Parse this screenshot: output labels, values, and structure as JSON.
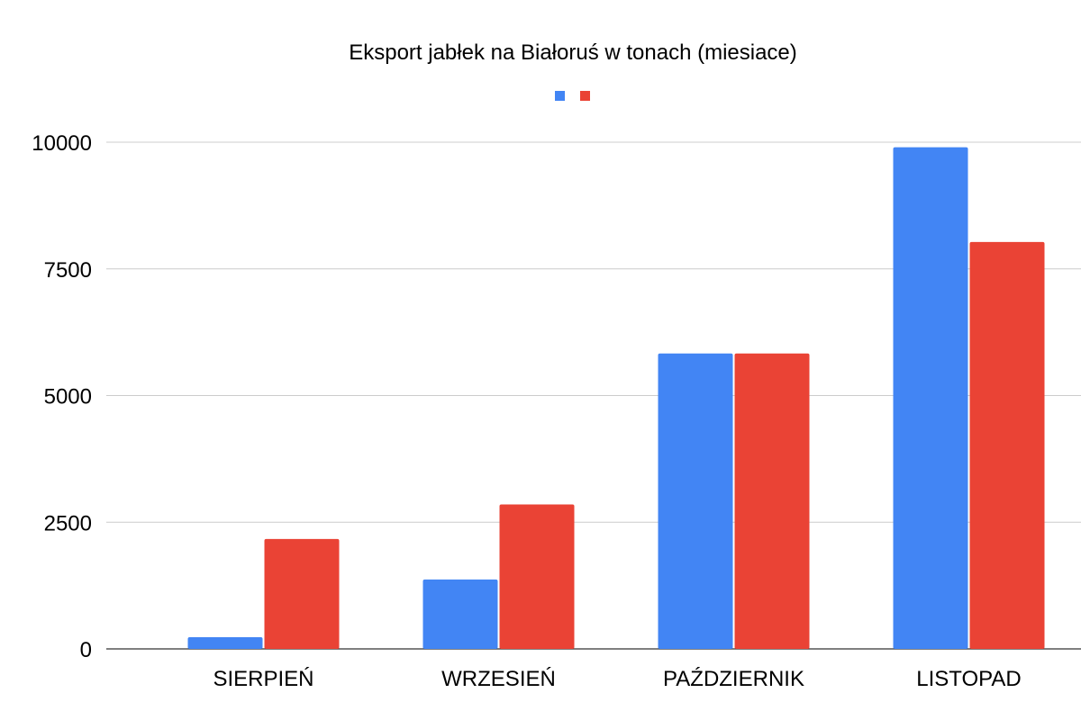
{
  "chart_data": {
    "type": "bar",
    "title": "Eksport jabłek na Białoruś w tonach (miesiace)",
    "xlabel": "",
    "ylabel": "",
    "categories": [
      "SIERPIEŃ",
      "WRZESIEŃ",
      "PAŹDZIERNIK",
      "LISTOPAD"
    ],
    "series": [
      {
        "values": [
          230,
          1370,
          5830,
          9900
        ],
        "color": "#4285f4"
      },
      {
        "values": [
          2170,
          2850,
          5830,
          8030
        ],
        "color": "#ea4335"
      }
    ],
    "ylim": [
      0,
      10000
    ],
    "yticks": [
      "0",
      "2500",
      "5000",
      "7500",
      "10000"
    ],
    "grid": true,
    "legend": "top-center"
  }
}
